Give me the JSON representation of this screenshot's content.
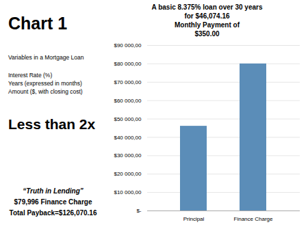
{
  "chart_data": {
    "type": "bar",
    "title": "Chart 1",
    "subtitle": "Variables in a Mortgage Loan",
    "annotations": [
      "Interest Rate (%)",
      "Years (expressed in months)",
      "Amount ($, with closing cost)",
      "Less than 2x",
      "“Truth in Lending”",
      "$79,996 Finance Charge",
      "Total Payback=$126,070.16"
    ],
    "plot_title": [
      "A basic 8.375% loan over 30 years",
      "for $46,074.16",
      "Monthly Payment of",
      "$350.00"
    ],
    "categories": [
      "Principal",
      "Finance Charge"
    ],
    "values": [
      46074.16,
      79996.0
    ],
    "color": "#5B8DB8",
    "ylim": [
      0,
      90000
    ],
    "yticks": [
      {
        "value": 0,
        "label": "$-"
      },
      {
        "value": 10000,
        "label": "$10 000,00"
      },
      {
        "value": 20000,
        "label": "$20 000,00"
      },
      {
        "value": 30000,
        "label": "$30 000,00"
      },
      {
        "value": 40000,
        "label": "$40 000,00"
      },
      {
        "value": 50000,
        "label": "$50 000,00"
      },
      {
        "value": 60000,
        "label": "$60 000,00"
      },
      {
        "value": 70000,
        "label": "$70 000,00"
      },
      {
        "value": 80000,
        "label": "$80 000,00"
      },
      {
        "value": 90000,
        "label": "$90 000,00"
      }
    ],
    "grid": true
  }
}
